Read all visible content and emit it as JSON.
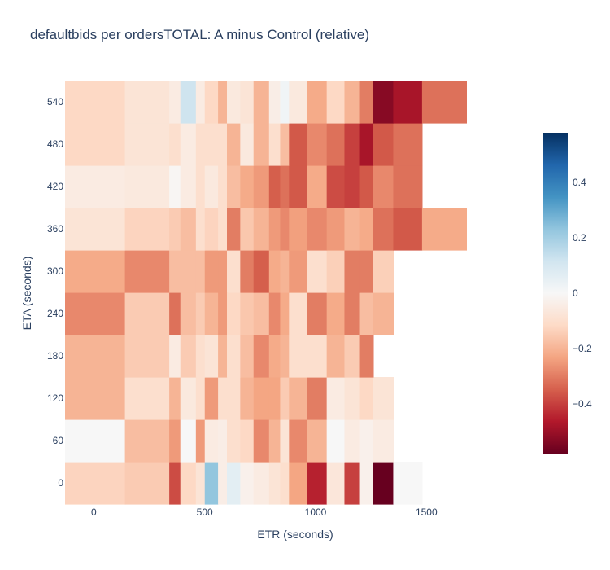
{
  "chart_data": {
    "type": "heatmap",
    "title": "defaultbids per ordersTOTAL: A minus Control (relative)",
    "xlabel": "ETR (seconds)",
    "ylabel": "ETA (seconds)",
    "x_ticks": [
      "0",
      "500",
      "1000",
      "1500"
    ],
    "y_ticks": [
      "0",
      "60",
      "120",
      "180",
      "240",
      "300",
      "360",
      "420",
      "480",
      "540"
    ],
    "xlim": [
      -130,
      1950
    ],
    "x_edges": [
      -130,
      140,
      340,
      390,
      460,
      500,
      560,
      600,
      660,
      720,
      790,
      840,
      880,
      960,
      1050,
      1130,
      1200,
      1260,
      1350,
      1480,
      1680,
      1950
    ],
    "y_values": [
      0,
      60,
      120,
      180,
      240,
      300,
      360,
      420,
      480,
      540
    ],
    "z": [
      [
        -0.13,
        -0.15,
        -0.38,
        -0.12,
        -0.08,
        0.23,
        -0.04,
        0.06,
        -0.03,
        -0.05,
        -0.08,
        -0.1,
        -0.23,
        -0.45,
        -0.07,
        -0.4,
        -0.03,
        -0.58,
        0.0
      ],
      [
        0.0,
        -0.18,
        -0.25,
        0.0,
        -0.25,
        -0.05,
        -0.04,
        -0.1,
        -0.12,
        -0.28,
        -0.2,
        -0.08,
        -0.28,
        -0.2,
        0.0,
        -0.05,
        -0.03,
        -0.05
      ],
      [
        -0.2,
        -0.1,
        -0.2,
        -0.06,
        -0.1,
        -0.25,
        -0.1,
        -0.1,
        -0.2,
        -0.23,
        -0.23,
        -0.15,
        -0.2,
        -0.3,
        -0.05,
        -0.08,
        -0.12,
        -0.08
      ],
      [
        -0.2,
        -0.15,
        -0.05,
        -0.15,
        -0.1,
        -0.08,
        -0.2,
        -0.1,
        -0.18,
        -0.28,
        -0.22,
        -0.2,
        -0.1,
        -0.1,
        -0.2,
        -0.15,
        -0.3
      ],
      [
        -0.28,
        -0.15,
        -0.32,
        -0.18,
        -0.15,
        -0.2,
        -0.25,
        -0.12,
        -0.16,
        -0.18,
        -0.28,
        -0.22,
        -0.1,
        -0.3,
        -0.22,
        -0.3,
        -0.18,
        -0.2
      ],
      [
        -0.22,
        -0.28,
        -0.18,
        -0.18,
        -0.18,
        -0.25,
        -0.25,
        -0.1,
        -0.3,
        -0.35,
        -0.22,
        -0.2,
        -0.25,
        -0.1,
        -0.14,
        -0.3,
        -0.3,
        -0.14
      ],
      [
        -0.08,
        -0.13,
        -0.15,
        -0.18,
        -0.1,
        -0.13,
        -0.1,
        -0.3,
        -0.16,
        -0.2,
        -0.25,
        -0.28,
        -0.24,
        -0.28,
        -0.25,
        -0.2,
        -0.22,
        -0.32,
        -0.36,
        -0.22
      ],
      [
        -0.05,
        -0.06,
        -0.01,
        -0.05,
        -0.1,
        -0.06,
        -0.1,
        -0.18,
        -0.22,
        -0.25,
        -0.35,
        -0.32,
        -0.36,
        -0.22,
        -0.38,
        -0.4,
        -0.36,
        -0.28,
        -0.32
      ],
      [
        -0.12,
        -0.08,
        -0.1,
        -0.05,
        -0.1,
        -0.1,
        -0.1,
        -0.2,
        -0.06,
        -0.2,
        -0.1,
        -0.18,
        -0.36,
        -0.28,
        -0.32,
        -0.4,
        -0.48,
        -0.36,
        -0.32
      ],
      [
        -0.12,
        -0.08,
        -0.05,
        0.12,
        -0.05,
        -0.12,
        -0.2,
        -0.06,
        -0.08,
        -0.2,
        -0.04,
        0.02,
        -0.06,
        -0.22,
        -0.12,
        -0.2,
        -0.3,
        -0.53,
        -0.48,
        -0.32
      ]
    ],
    "zlim": [
      -0.58,
      0.58
    ],
    "colorscale": "RdBu",
    "colorbar_ticks": [
      "0.4",
      "0.2",
      "0",
      "−0.2",
      "−0.4"
    ],
    "colorbar_tick_values": [
      0.4,
      0.2,
      0,
      -0.2,
      -0.4
    ]
  }
}
